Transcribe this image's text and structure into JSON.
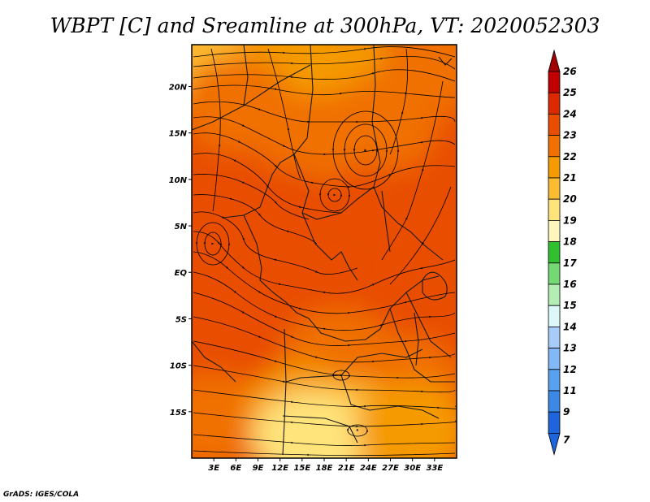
{
  "title": "WBPT [C] and Sreamline at 300hPa, VT: 2020052303",
  "credit": "GrADS: IGES/COLA",
  "chart_data": {
    "type": "heatmap",
    "title": "WBPT [C] and Sreamline at 300hPa, VT: 2020052303",
    "x_axis": {
      "range": [
        0,
        36
      ],
      "ticks": [
        {
          "value": 3,
          "label": "3E"
        },
        {
          "value": 6,
          "label": "6E"
        },
        {
          "value": 9,
          "label": "9E"
        },
        {
          "value": 12,
          "label": "12E"
        },
        {
          "value": 15,
          "label": "15E"
        },
        {
          "value": 18,
          "label": "18E"
        },
        {
          "value": 21,
          "label": "21E"
        },
        {
          "value": 24,
          "label": "24E"
        },
        {
          "value": 27,
          "label": "27E"
        },
        {
          "value": 30,
          "label": "30E"
        },
        {
          "value": 33,
          "label": "33E"
        }
      ]
    },
    "y_axis": {
      "range": [
        -20,
        24.5
      ],
      "ticks": [
        {
          "value": 20,
          "label": "20N"
        },
        {
          "value": 15,
          "label": "15N"
        },
        {
          "value": 10,
          "label": "10N"
        },
        {
          "value": 5,
          "label": "5N"
        },
        {
          "value": 0,
          "label": "EQ"
        },
        {
          "value": -5,
          "label": "5S"
        },
        {
          "value": -10,
          "label": "10S"
        },
        {
          "value": -15,
          "label": "15S"
        }
      ]
    },
    "colorbar": {
      "levels": [
        {
          "label": "26",
          "color": "#a00000"
        },
        {
          "label": "25",
          "color": "#c00000"
        },
        {
          "label": "24",
          "color": "#dc2a00"
        },
        {
          "label": "23",
          "color": "#e84e00"
        },
        {
          "label": "22",
          "color": "#f07000"
        },
        {
          "label": "21",
          "color": "#f59a00"
        },
        {
          "label": "20",
          "color": "#fcbc32"
        },
        {
          "label": "19",
          "color": "#ffe47c"
        },
        {
          "label": "18",
          "color": "#fff6be"
        },
        {
          "label": "17",
          "color": "#30c030"
        },
        {
          "label": "16",
          "color": "#74d874"
        },
        {
          "label": "15",
          "color": "#b4eeb4"
        },
        {
          "label": "14",
          "color": "#ddf8f8"
        },
        {
          "label": "13",
          "color": "#a8ccfa"
        },
        {
          "label": "12",
          "color": "#82b8f5"
        },
        {
          "label": "11",
          "color": "#58a0f0"
        },
        {
          "label": "9",
          "color": "#3c88e6"
        },
        {
          "label": "7",
          "color": "#1e64dc"
        }
      ],
      "top_color": "#a00000",
      "bottom_color": "#1e64dc"
    },
    "field_regions": [
      {
        "lon": 2,
        "lat": 22,
        "value": 20.5
      },
      {
        "lon": 14,
        "lat": 23,
        "value": 21.5
      },
      {
        "lon": 6,
        "lat": 18,
        "value": 22.5
      },
      {
        "lon": 24,
        "lat": 21,
        "value": 21.5
      },
      {
        "lon": 33,
        "lat": 22,
        "value": 22.5
      },
      {
        "lon": 17,
        "lat": 14,
        "value": 22.5
      },
      {
        "lon": 26,
        "lat": 16,
        "value": 22.5
      },
      {
        "lon": 3,
        "lat": 8,
        "value": 23.5
      },
      {
        "lon": 12,
        "lat": 6,
        "value": 23.5
      },
      {
        "lon": 24,
        "lat": 6,
        "value": 23.5
      },
      {
        "lon": 30,
        "lat": 4,
        "value": 23.5
      },
      {
        "lon": 4,
        "lat": -2,
        "value": 23.5
      },
      {
        "lon": 16,
        "lat": -3,
        "value": 23.5
      },
      {
        "lon": 27,
        "lat": -4,
        "value": 23.5
      },
      {
        "lon": 33,
        "lat": -8,
        "value": 23.5
      },
      {
        "lon": 6,
        "lat": -10,
        "value": 23.0
      },
      {
        "lon": 20,
        "lat": -9,
        "value": 22.5
      },
      {
        "lon": 29,
        "lat": -12,
        "value": 22.5
      },
      {
        "lon": 3,
        "lat": -16,
        "value": 22.0
      },
      {
        "lon": 15,
        "lat": -15,
        "value": 21.5
      },
      {
        "lon": 22,
        "lat": -17,
        "value": 20.0
      },
      {
        "lon": 16,
        "lat": -18,
        "value": 19.5
      },
      {
        "lon": 30,
        "lat": -17,
        "value": 21.0
      }
    ]
  }
}
